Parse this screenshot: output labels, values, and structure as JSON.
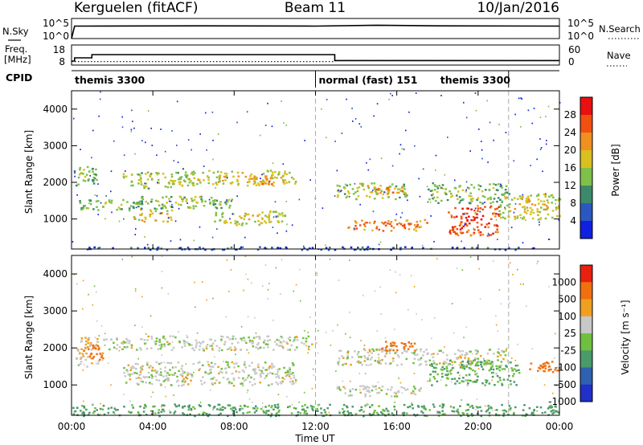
{
  "header": {
    "station": "Kerguelen (fitACF)",
    "beam": "Beam 11",
    "date": "10/Jan/2016"
  },
  "noise_panel": {
    "left_label": "N.Sky",
    "right_label": "N.Search",
    "left_ticks": [
      "10^5",
      "10^0"
    ],
    "right_ticks": [
      "10^5",
      "10^0"
    ]
  },
  "freq_panel": {
    "left_label_1": "Freq.",
    "left_label_2": "[MHz]",
    "left_ticks": [
      "18",
      "8"
    ],
    "right_label": "Nave",
    "right_ticks": [
      "60",
      "0"
    ]
  },
  "cpid": {
    "label": "CPID",
    "segments": [
      {
        "name": "themis 3300",
        "start_h": 0,
        "end_h": 12
      },
      {
        "name": "normal (fast) 151",
        "start_h": 12,
        "end_h": 21.5
      },
      {
        "name": "themis 3300",
        "start_h": 21.5,
        "end_h": 24
      }
    ]
  },
  "axes": {
    "xlabel": "Time UT",
    "x_ticks": [
      "00:00",
      "04:00",
      "08:00",
      "12:00",
      "16:00",
      "20:00",
      "00:00"
    ],
    "ylabel": "Slant Range [km]",
    "y_ticks": [
      "1000",
      "2000",
      "3000",
      "4000"
    ]
  },
  "colorbars": {
    "power": {
      "label": "Power [dB]",
      "ticks": [
        "4",
        "8",
        "12",
        "16",
        "20",
        "24",
        "28"
      ],
      "colors": [
        "#1020e0",
        "#2a58c0",
        "#3c8a6a",
        "#7fc04a",
        "#d8c020",
        "#f09020",
        "#f05010",
        "#e81010"
      ]
    },
    "velocity": {
      "label": "Velocity [m s⁻¹]",
      "ticks": [
        "1000",
        "500",
        "100",
        "25",
        "-25",
        "-100",
        "-500",
        "-1000"
      ],
      "colors": [
        "#2030c8",
        "#3060b0",
        "#4a9a6a",
        "#70c040",
        "#c8c8c8",
        "#f0a020",
        "#f07010",
        "#e82010"
      ]
    }
  },
  "chart_data": {
    "type": "heatmap",
    "x_unit": "hours UT",
    "xlim": [
      0,
      24
    ],
    "y_unit": "km",
    "ylim": [
      180,
      4500
    ],
    "noise_sky_log10": [
      [
        0,
        0
      ],
      [
        0.15,
        4.3
      ],
      [
        6,
        4.4
      ],
      [
        12,
        4.3
      ],
      [
        15,
        4.6
      ],
      [
        18,
        4.4
      ],
      [
        24,
        4.3
      ]
    ],
    "frequency_mhz": [
      [
        0,
        10
      ],
      [
        0.15,
        12
      ],
      [
        1,
        14
      ],
      [
        12.9,
        14
      ],
      [
        12.95,
        10.3
      ],
      [
        24,
        10.3
      ]
    ],
    "nave": [
      [
        0,
        10
      ],
      [
        12.9,
        10
      ],
      [
        13,
        14
      ],
      [
        24,
        14
      ]
    ],
    "power_regions": [
      {
        "t0": 0.1,
        "t1": 1.2,
        "r0": 1900,
        "r1": 2500,
        "power_db": 14
      },
      {
        "t0": 2.5,
        "t1": 6.0,
        "r0": 1850,
        "r1": 2300,
        "power_db": 16
      },
      {
        "t0": 5.5,
        "t1": 11.0,
        "r0": 1950,
        "r1": 2350,
        "power_db": 18
      },
      {
        "t0": 8.5,
        "t1": 10.5,
        "r0": 1900,
        "r1": 2200,
        "power_db": 22
      },
      {
        "t0": 0.3,
        "t1": 3.5,
        "r0": 1250,
        "r1": 1550,
        "power_db": 14
      },
      {
        "t0": 3.0,
        "t1": 8.0,
        "r0": 1300,
        "r1": 1650,
        "power_db": 15
      },
      {
        "t0": 3.0,
        "t1": 5.0,
        "r0": 950,
        "r1": 1300,
        "power_db": 20
      },
      {
        "t0": 7.0,
        "t1": 10.5,
        "r0": 850,
        "r1": 1250,
        "power_db": 18
      },
      {
        "t0": 13.0,
        "t1": 16.5,
        "r0": 1550,
        "r1": 2000,
        "power_db": 16
      },
      {
        "t0": 14.5,
        "t1": 16.5,
        "r0": 1700,
        "r1": 1950,
        "power_db": 22
      },
      {
        "t0": 13.5,
        "t1": 17.5,
        "r0": 700,
        "r1": 1000,
        "power_db": 24
      },
      {
        "t0": 17.5,
        "t1": 21.5,
        "r0": 1450,
        "r1": 2000,
        "power_db": 14
      },
      {
        "t0": 18.5,
        "t1": 21.0,
        "r0": 550,
        "r1": 1400,
        "power_db": 27
      },
      {
        "t0": 21.0,
        "t1": 24.0,
        "r0": 1000,
        "r1": 1700,
        "power_db": 18
      },
      {
        "t0": 0.0,
        "t1": 24.0,
        "r0": 180,
        "r1": 260,
        "power_db": 6
      }
    ],
    "velocity_regions": [
      {
        "t0": 0.2,
        "t1": 1.5,
        "r0": 1500,
        "r1": 2300,
        "velocity": -25
      },
      {
        "t0": 1.5,
        "t1": 12.0,
        "r0": 1950,
        "r1": 2350,
        "velocity": 10
      },
      {
        "t0": 2.5,
        "t1": 11.0,
        "r0": 1000,
        "r1": 1650,
        "velocity": 5
      },
      {
        "t0": 13.0,
        "t1": 21.5,
        "r0": 1550,
        "r1": 2000,
        "velocity": 0
      },
      {
        "t0": 13.0,
        "t1": 17.5,
        "r0": 700,
        "r1": 1000,
        "velocity": 10
      },
      {
        "t0": 17.5,
        "t1": 22.0,
        "r0": 1000,
        "r1": 1700,
        "velocity": 60
      },
      {
        "t0": 0.5,
        "t1": 1.5,
        "r0": 1700,
        "r1": 2100,
        "velocity": -150
      },
      {
        "t0": 15.0,
        "t1": 17.0,
        "r0": 1900,
        "r1": 2200,
        "velocity": -200
      },
      {
        "t0": 22.5,
        "t1": 24.0,
        "r0": 1300,
        "r1": 1700,
        "velocity": -150
      },
      {
        "t0": 0.0,
        "t1": 24.0,
        "r0": 180,
        "r1": 500,
        "velocity": 80
      }
    ]
  }
}
